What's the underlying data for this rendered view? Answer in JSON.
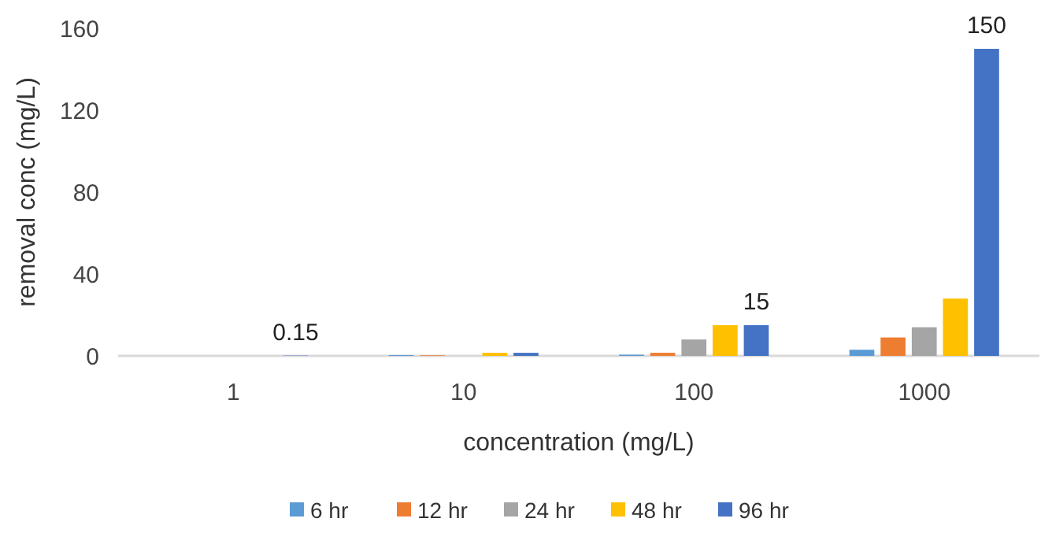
{
  "chart_data": {
    "type": "bar",
    "xlabel": "concentration (mg/L)",
    "ylabel": "removal conc (mg/L)",
    "categories": [
      "1",
      "10",
      "100",
      "1000"
    ],
    "ylim": [
      0,
      160
    ],
    "yticks": [
      0,
      40,
      80,
      120,
      160
    ],
    "grid": false,
    "legend": "bottom",
    "series": [
      {
        "name": "6 hr",
        "color": "#5b9bd5",
        "values": [
          null,
          0.4,
          0.6,
          3
        ]
      },
      {
        "name": "12 hr",
        "color": "#ed7d31",
        "values": [
          null,
          0.3,
          1.5,
          9
        ]
      },
      {
        "name": "24 hr",
        "color": "#a5a5a5",
        "values": [
          null,
          null,
          8,
          14
        ]
      },
      {
        "name": "48 hr",
        "color": "#ffc000",
        "values": [
          null,
          1.5,
          15,
          28
        ]
      },
      {
        "name": "96 hr",
        "color": "#4472c4",
        "values": [
          0.15,
          1.5,
          15,
          150
        ],
        "value_labels": [
          "0.15",
          null,
          "15",
          "150"
        ]
      }
    ]
  }
}
